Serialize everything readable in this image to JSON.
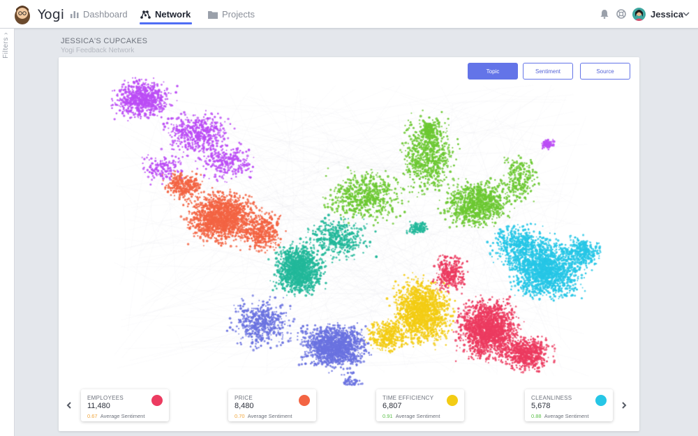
{
  "app": {
    "brand": "Yogi"
  },
  "nav": {
    "items": [
      {
        "label": "Dashboard",
        "icon": "bar-chart-icon"
      },
      {
        "label": "Network",
        "icon": "network-icon"
      },
      {
        "label": "Projects",
        "icon": "folder-icon"
      }
    ],
    "active": "Network"
  },
  "user": {
    "name": "Jessica"
  },
  "filters": {
    "label": "Filters"
  },
  "page": {
    "title": "JESSICA'S CUPCAKES",
    "subtitle": "Yogi Feedback Network"
  },
  "modes": {
    "topic": "Topic",
    "sentiment": "Sentiment",
    "source": "Source",
    "active": "Topic"
  },
  "stats": [
    {
      "label": "EMPLOYEES",
      "value": "11,480",
      "sentiment": "0.67",
      "sentiment_label": "Average Sentiment",
      "dot_color": "#ec3b60",
      "sent_color": "#f0a53b"
    },
    {
      "label": "PRICE",
      "value": "8,480",
      "sentiment": "0.70",
      "sentiment_label": "Average Sentiment",
      "dot_color": "#f36443",
      "sent_color": "#f0a53b"
    },
    {
      "label": "TIME EFFICIENCY",
      "value": "6,807",
      "sentiment": "0.91",
      "sentiment_label": "Average Sentiment",
      "dot_color": "#f3cc14",
      "sent_color": "#5cc04a"
    },
    {
      "label": "CLEANLINESS",
      "value": "5,678",
      "sentiment": "0.88",
      "sentiment_label": "Average Sentiment",
      "dot_color": "#26c6e6",
      "sent_color": "#5cc04a"
    }
  ],
  "colors": {
    "accent": "#4f6df5",
    "purple": "#bb4df5",
    "orange": "#f36443",
    "teal": "#22b89a",
    "green": "#6cc832",
    "blue": "#6a72e0",
    "yellow": "#f3cc14",
    "red": "#ec3b60",
    "cyan": "#26c6e6"
  }
}
